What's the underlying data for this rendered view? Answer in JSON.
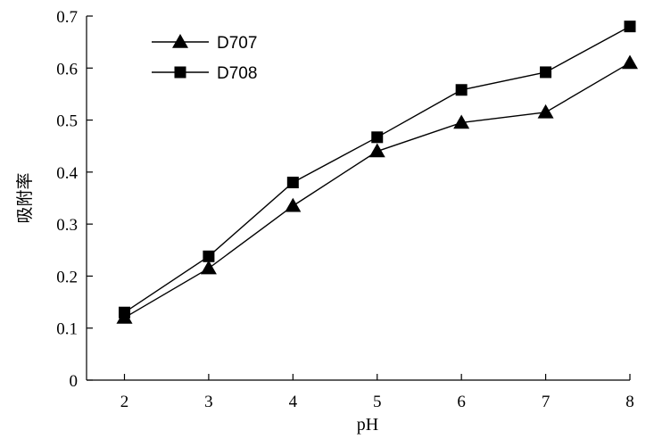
{
  "chart_data": {
    "type": "line",
    "title": "",
    "xlabel": "pH",
    "ylabel": "吸附率",
    "x": [
      2,
      3,
      4,
      5,
      6,
      7,
      8
    ],
    "xlim": [
      1.55,
      8.0
    ],
    "ylim": [
      0,
      0.7
    ],
    "x_ticks": [
      "2",
      "3",
      "4",
      "5",
      "6",
      "7",
      "8"
    ],
    "y_ticks": [
      "0",
      "0.1",
      "0.2",
      "0.3",
      "0.4",
      "0.5",
      "0.6",
      "0.7"
    ],
    "grid": false,
    "legend_position": "top-left",
    "series": [
      {
        "name": "D707",
        "marker": "triangle",
        "color": "#000000",
        "values": [
          0.12,
          0.215,
          0.335,
          0.44,
          0.495,
          0.515,
          0.61
        ]
      },
      {
        "name": "D708",
        "marker": "square",
        "color": "#000000",
        "values": [
          0.13,
          0.238,
          0.38,
          0.467,
          0.558,
          0.592,
          0.68
        ]
      }
    ]
  }
}
